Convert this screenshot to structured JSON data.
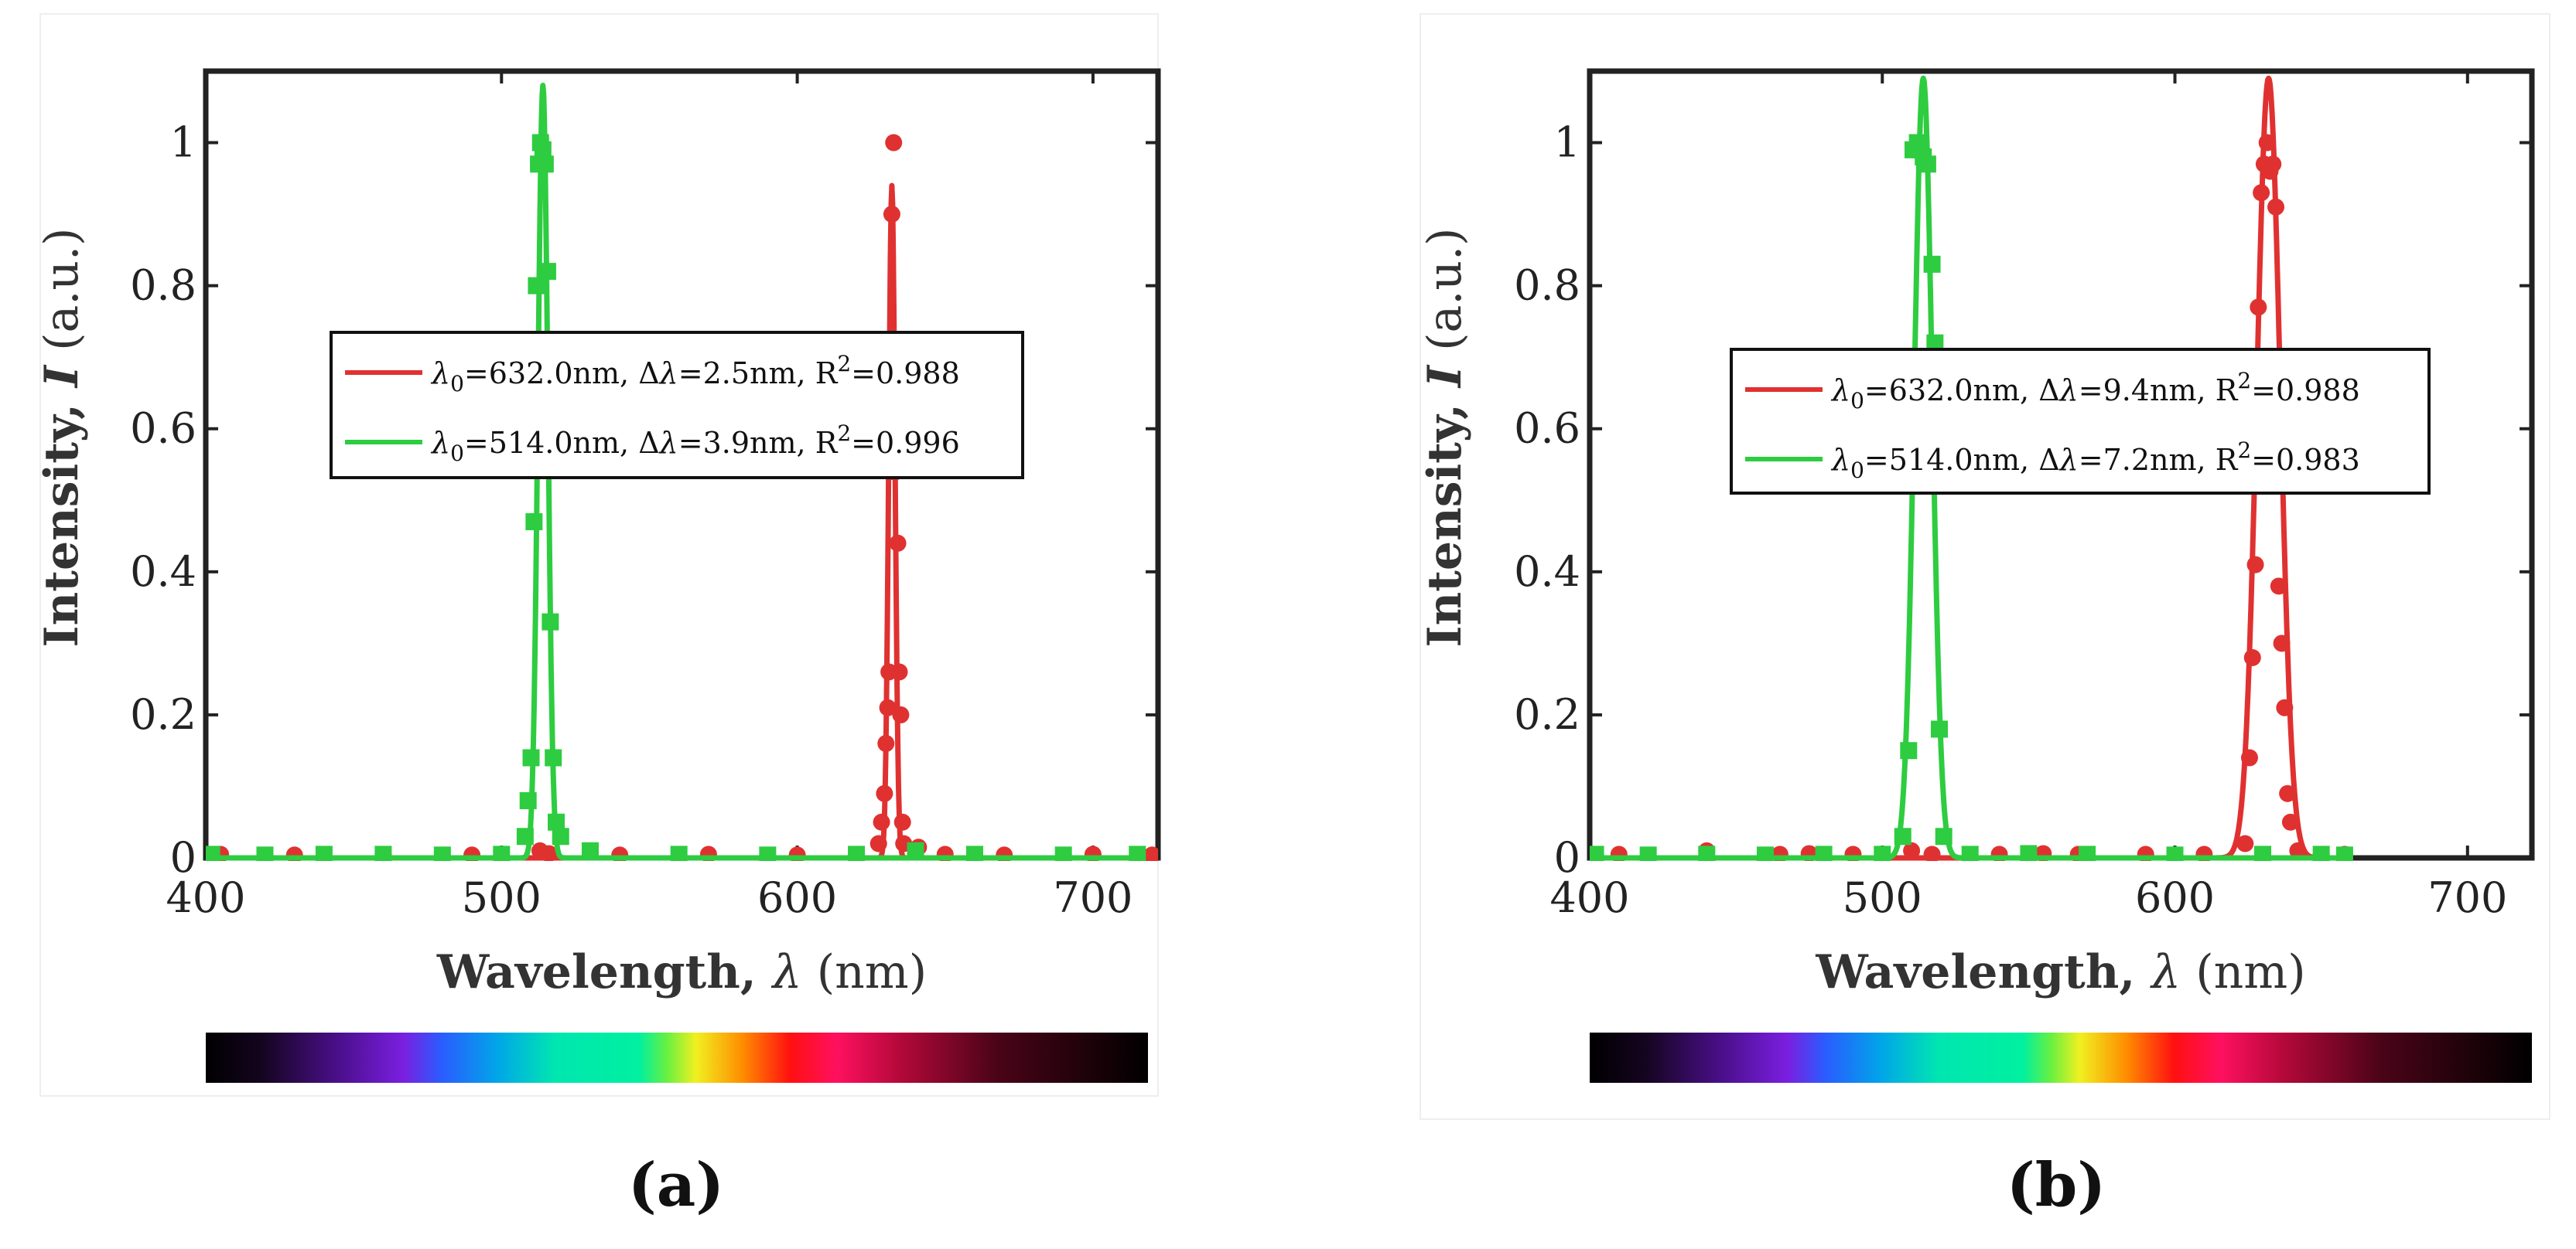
{
  "chart_data": [
    {
      "type": "line",
      "caption": "(a)",
      "xlabel": "Wavelength, λ (nm)",
      "xlabel_parts": {
        "bold": "Wavelength, ",
        "italic": "λ",
        "normal": " (nm)"
      },
      "ylabel": "Intensity, I (a.u.)",
      "ylabel_parts": {
        "bold": "Intensity, ",
        "italic": "I",
        "normal": " (a.u.)"
      },
      "xlim": [
        400,
        722
      ],
      "ylim": [
        0,
        1.1
      ],
      "xticks": [
        400,
        500,
        600,
        700
      ],
      "xtick_labels": [
        "400",
        "500",
        "600",
        "700"
      ],
      "yticks": [
        0,
        0.2,
        0.4,
        0.6,
        0.8,
        1
      ],
      "ytick_labels": [
        "0",
        "0.2",
        "0.4",
        "0.6",
        "0.8",
        "1"
      ],
      "legend_position": "center",
      "series": [
        {
          "name": "λ0=632.0nm, Δλ=2.5nm, R2=0.988",
          "legend": {
            "lam": "λ",
            "sub": "0",
            "a": "=632.0nm, Δ",
            "lam2": "λ",
            "b": "=2.5nm, R",
            "sup": "2",
            "c": "=0.988"
          },
          "color": "#e03131",
          "marker": "circle",
          "center": 632.0,
          "fwhm": 2.5,
          "peak": 0.94,
          "points": [
            [
              405,
              0.005
            ],
            [
              430,
              0.004
            ],
            [
              460,
              0.005
            ],
            [
              490,
              0.004
            ],
            [
              513,
              0.01
            ],
            [
              516,
              0.006
            ],
            [
              540,
              0.004
            ],
            [
              570,
              0.005
            ],
            [
              600,
              0.004
            ],
            [
              620,
              0.005
            ],
            [
              627.5,
              0.02
            ],
            [
              628.5,
              0.05
            ],
            [
              629.5,
              0.09
            ],
            [
              630,
              0.16
            ],
            [
              630.6,
              0.21
            ],
            [
              631,
              0.26
            ],
            [
              631.5,
              0.54
            ],
            [
              632,
              0.9
            ],
            [
              632.6,
              1.0
            ],
            [
              633.3,
              0.54
            ],
            [
              634,
              0.44
            ],
            [
              634.5,
              0.26
            ],
            [
              635,
              0.2
            ],
            [
              635.6,
              0.05
            ],
            [
              636,
              0.02
            ],
            [
              641,
              0.015
            ],
            [
              650,
              0.005
            ],
            [
              670,
              0.004
            ],
            [
              700,
              0.005
            ],
            [
              720,
              0.004
            ]
          ]
        },
        {
          "name": "λ0=514.0nm, Δλ=3.9nm, R2=0.996",
          "legend": {
            "lam": "λ",
            "sub": "0",
            "a": "=514.0nm, Δ",
            "lam2": "λ",
            "b": "=3.9nm, R",
            "sup": "2",
            "c": "=0.996"
          },
          "color": "#2ecc40",
          "marker": "square",
          "center": 514.0,
          "fwhm": 3.9,
          "peak": 1.08,
          "points": [
            [
              402,
              0.005
            ],
            [
              420,
              0.004
            ],
            [
              440,
              0.005
            ],
            [
              460,
              0.005
            ],
            [
              480,
              0.004
            ],
            [
              500,
              0.005
            ],
            [
              508,
              0.03
            ],
            [
              509,
              0.08
            ],
            [
              510,
              0.14
            ],
            [
              511,
              0.47
            ],
            [
              511.8,
              0.8
            ],
            [
              512.5,
              0.97
            ],
            [
              513.2,
              1.0
            ],
            [
              514,
              0.99
            ],
            [
              514.8,
              0.97
            ],
            [
              515.6,
              0.82
            ],
            [
              516.5,
              0.33
            ],
            [
              517.5,
              0.14
            ],
            [
              518.5,
              0.05
            ],
            [
              520,
              0.03
            ],
            [
              530,
              0.01
            ],
            [
              560,
              0.005
            ],
            [
              590,
              0.004
            ],
            [
              620,
              0.005
            ],
            [
              640,
              0.01
            ],
            [
              660,
              0.005
            ],
            [
              690,
              0.004
            ],
            [
              715,
              0.005
            ]
          ]
        }
      ]
    },
    {
      "type": "line",
      "caption": "(b)",
      "xlabel": "Wavelength, λ (nm)",
      "xlabel_parts": {
        "bold": "Wavelength, ",
        "italic": "λ",
        "normal": " (nm)"
      },
      "ylabel": "Intensity, I (a.u.)",
      "ylabel_parts": {
        "bold": "Intensity, ",
        "italic": "I",
        "normal": " (a.u.)"
      },
      "xlim": [
        400,
        722
      ],
      "ylim": [
        0,
        1.1
      ],
      "xticks": [
        400,
        500,
        600,
        700
      ],
      "xtick_labels": [
        "400",
        "500",
        "600",
        "700"
      ],
      "yticks": [
        0,
        0.2,
        0.4,
        0.6,
        0.8,
        1
      ],
      "ytick_labels": [
        "0",
        "0.2",
        "0.4",
        "0.6",
        "0.8",
        "1"
      ],
      "legend_position": "center",
      "series": [
        {
          "name": "λ0=632.0nm, Δλ=9.4nm, R2=0.988",
          "legend": {
            "lam": "λ",
            "sub": "0",
            "a": "=632.0nm, Δ",
            "lam2": "λ",
            "b": "=9.4nm, R",
            "sup": "2",
            "c": "=0.988"
          },
          "color": "#e03131",
          "marker": "circle",
          "center": 632.0,
          "fwhm": 9.4,
          "peak": 1.09,
          "points": [
            [
              410,
              0.005
            ],
            [
              440,
              0.01
            ],
            [
              465,
              0.005
            ],
            [
              475,
              0.006
            ],
            [
              490,
              0.005
            ],
            [
              510,
              0.01
            ],
            [
              517,
              0.005
            ],
            [
              540,
              0.005
            ],
            [
              555,
              0.006
            ],
            [
              567,
              0.005
            ],
            [
              590,
              0.005
            ],
            [
              610,
              0.005
            ],
            [
              624,
              0.02
            ],
            [
              625.5,
              0.14
            ],
            [
              626.5,
              0.28
            ],
            [
              627.5,
              0.41
            ],
            [
              628.5,
              0.77
            ],
            [
              629.5,
              0.93
            ],
            [
              630.5,
              0.97
            ],
            [
              631.5,
              1.0
            ],
            [
              632.5,
              0.96
            ],
            [
              633.5,
              0.97
            ],
            [
              634.5,
              0.91
            ],
            [
              635.5,
              0.38
            ],
            [
              636.5,
              0.3
            ],
            [
              637.5,
              0.21
            ],
            [
              638.5,
              0.09
            ],
            [
              639.5,
              0.05
            ],
            [
              642,
              0.01
            ],
            [
              650,
              0.005
            ],
            [
              658,
              0.005
            ]
          ]
        },
        {
          "name": "λ0=514.0nm, Δλ=7.2nm, R2=0.983",
          "legend": {
            "lam": "λ",
            "sub": "0",
            "a": "=514.0nm, Δ",
            "lam2": "λ",
            "b": "=7.2nm, R",
            "sup": "2",
            "c": "=0.983"
          },
          "color": "#2ecc40",
          "marker": "square",
          "center": 514.0,
          "fwhm": 7.2,
          "peak": 1.09,
          "points": [
            [
              402,
              0.005
            ],
            [
              420,
              0.004
            ],
            [
              440,
              0.005
            ],
            [
              460,
              0.004
            ],
            [
              480,
              0.005
            ],
            [
              500,
              0.005
            ],
            [
              507,
              0.03
            ],
            [
              509,
              0.15
            ],
            [
              510.5,
              0.99
            ],
            [
              512,
              1.0
            ],
            [
              513,
              0.99
            ],
            [
              514,
              0.98
            ],
            [
              515.5,
              0.97
            ],
            [
              517,
              0.83
            ],
            [
              518,
              0.72
            ],
            [
              519.5,
              0.18
            ],
            [
              521,
              0.03
            ],
            [
              530,
              0.005
            ],
            [
              550,
              0.006
            ],
            [
              570,
              0.005
            ],
            [
              600,
              0.004
            ],
            [
              630,
              0.005
            ],
            [
              650,
              0.005
            ],
            [
              658,
              0.004
            ]
          ]
        }
      ]
    }
  ]
}
